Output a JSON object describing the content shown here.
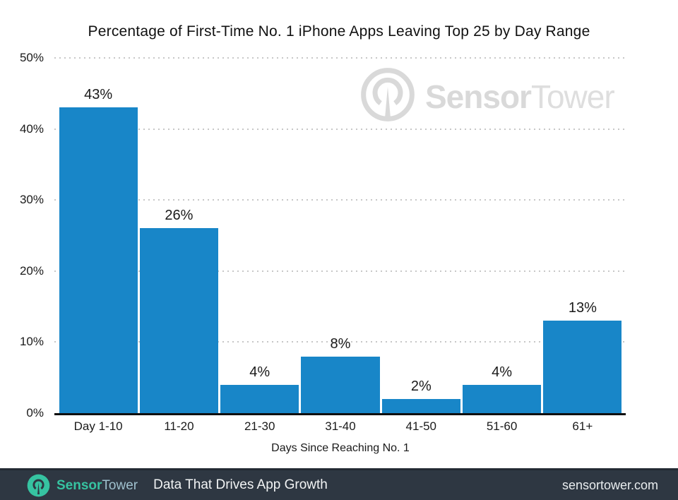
{
  "chart_data": {
    "type": "bar",
    "title": "Percentage of First-Time No. 1 iPhone Apps Leaving Top 25 by Day Range",
    "categories": [
      "Day 1-10",
      "11-20",
      "21-30",
      "31-40",
      "41-50",
      "51-60",
      "61+"
    ],
    "values": [
      43,
      26,
      4,
      8,
      2,
      4,
      13
    ],
    "bar_labels": [
      "43%",
      "26%",
      "4%",
      "8%",
      "2%",
      "4%",
      "13%"
    ],
    "xlabel": "Days Since Reaching No. 1",
    "ylabel": "",
    "ylim": [
      0,
      50
    ],
    "ytick_values": [
      0,
      10,
      20,
      30,
      40,
      50
    ],
    "ytick_labels": [
      "0%",
      "10%",
      "20%",
      "30%",
      "40%",
      "50%"
    ],
    "grid": "horizontal-dotted",
    "legend": "none",
    "bar_color": "#1886c8"
  },
  "watermark": {
    "brand_bold": "Sensor",
    "brand_light": "Tower"
  },
  "footer": {
    "brand_bold": "Sensor",
    "brand_light": "Tower",
    "tagline": "Data That Drives App Growth",
    "url": "sensortower.com"
  },
  "colors": {
    "bar": "#1886c8",
    "grid": "#c7c7c7",
    "axis": "#0f0f0f",
    "text": "#1a1a1a",
    "watermark_gray": "#d9d9d9",
    "footer_bg": "#2e3742",
    "teal": "#36c3a1",
    "footer_light": "#9fc0cd",
    "footer_white": "#f2f4f5"
  }
}
